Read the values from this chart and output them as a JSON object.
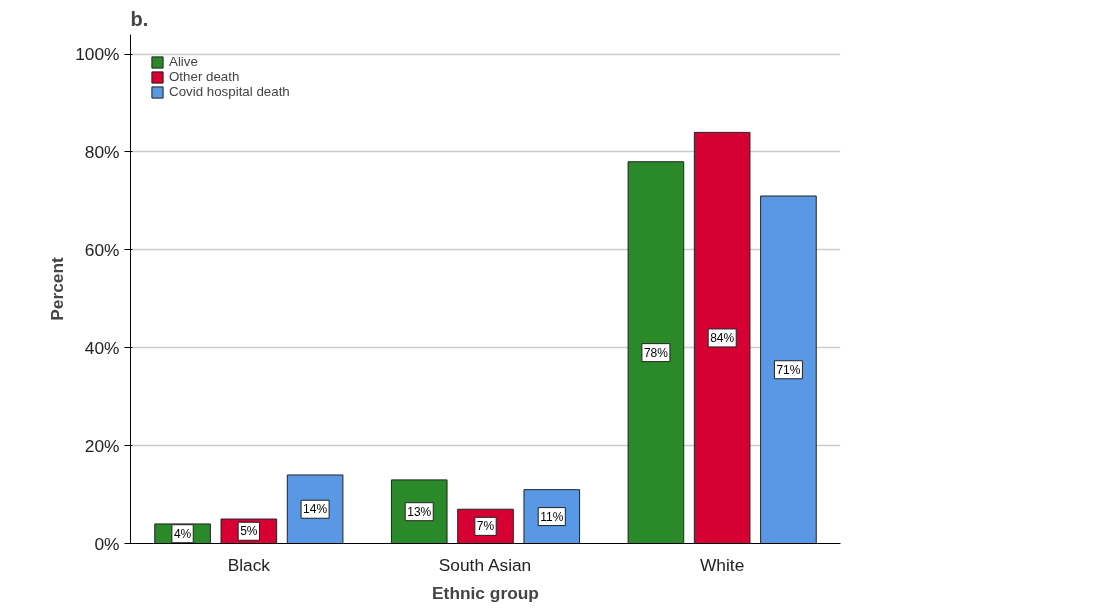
{
  "chart_data": {
    "type": "bar",
    "title": "b.",
    "xlabel": "Ethnic group",
    "ylabel": "Percent",
    "categories": [
      "Black",
      "South Asian",
      "White"
    ],
    "series": [
      {
        "name": "Alive",
        "color": "#2a8a2a",
        "values": [
          4,
          13,
          78
        ],
        "value_labels": [
          "4%",
          "13%",
          "78%"
        ]
      },
      {
        "name": "Other death",
        "color": "#d60032",
        "values": [
          5,
          7,
          84
        ],
        "value_labels": [
          "5%",
          "7%",
          "84%"
        ]
      },
      {
        "name": "Covid hospital death",
        "color": "#5898e4",
        "values": [
          14,
          11,
          71
        ],
        "value_labels": [
          "14%",
          "11%",
          "71%"
        ]
      }
    ],
    "ylim": [
      0,
      100
    ],
    "yticks": [
      {
        "value": 0,
        "label": "0%"
      },
      {
        "value": 20,
        "label": "20%"
      },
      {
        "value": 40,
        "label": "40%"
      },
      {
        "value": 60,
        "label": "60%"
      },
      {
        "value": 80,
        "label": "80%"
      },
      {
        "value": 100,
        "label": "100%"
      }
    ],
    "grid": "y",
    "legend": "top left"
  }
}
